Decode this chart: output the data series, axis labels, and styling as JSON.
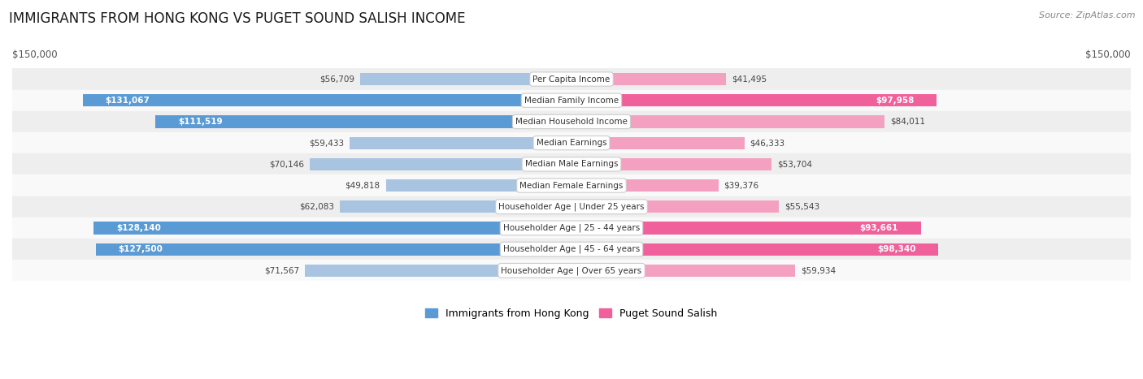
{
  "title": "IMMIGRANTS FROM HONG KONG VS PUGET SOUND SALISH INCOME",
  "source": "Source: ZipAtlas.com",
  "categories": [
    "Per Capita Income",
    "Median Family Income",
    "Median Household Income",
    "Median Earnings",
    "Median Male Earnings",
    "Median Female Earnings",
    "Householder Age | Under 25 years",
    "Householder Age | 25 - 44 years",
    "Householder Age | 45 - 64 years",
    "Householder Age | Over 65 years"
  ],
  "hk_values": [
    56709,
    131067,
    111519,
    59433,
    70146,
    49818,
    62083,
    128140,
    127500,
    71567
  ],
  "salish_values": [
    41495,
    97958,
    84011,
    46333,
    53704,
    39376,
    55543,
    93661,
    98340,
    59934
  ],
  "hk_labels": [
    "$56,709",
    "$131,067",
    "$111,519",
    "$59,433",
    "$70,146",
    "$49,818",
    "$62,083",
    "$128,140",
    "$127,500",
    "$71,567"
  ],
  "salish_labels": [
    "$41,495",
    "$97,958",
    "$84,011",
    "$46,333",
    "$53,704",
    "$39,376",
    "$55,543",
    "$93,661",
    "$98,340",
    "$59,934"
  ],
  "hk_color_light": "#a8c4e0",
  "hk_color_dark": "#5b9bd5",
  "salish_color_light": "#f4a0c0",
  "salish_color_dark": "#f0609a",
  "max_value": 150000,
  "xlabel_left": "$150,000",
  "xlabel_right": "$150,000",
  "legend_hk": "Immigrants from Hong Kong",
  "legend_salish": "Puget Sound Salish",
  "hk_inside_threshold": 85000,
  "salish_inside_threshold": 85000,
  "row_colors": [
    "#eeeeee",
    "#f9f9f9"
  ]
}
